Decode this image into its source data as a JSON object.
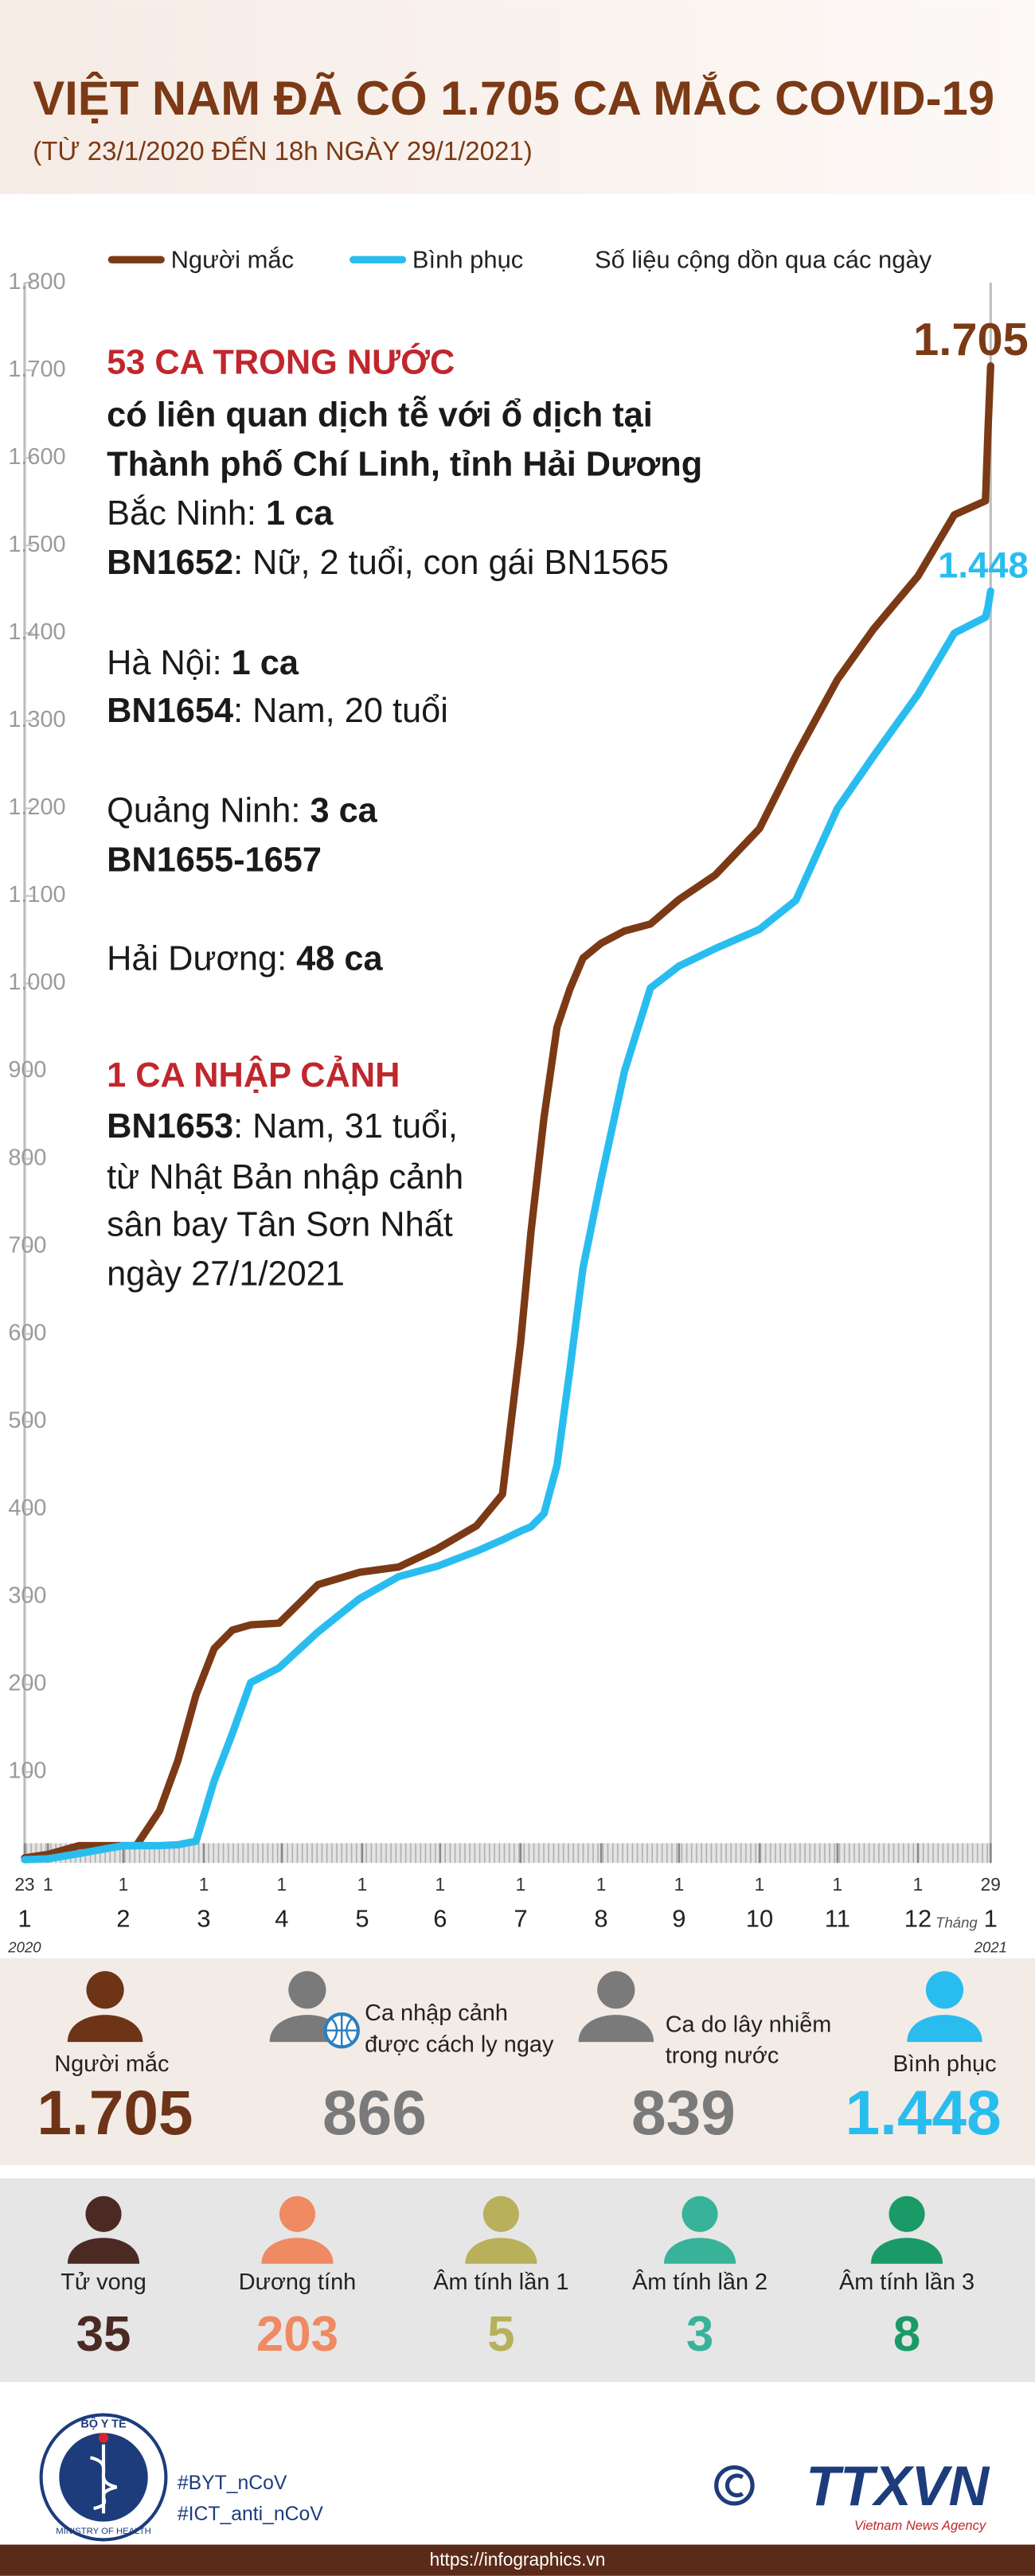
{
  "chart_data": {
    "type": "line",
    "title": "VIỆT NAM ĐÃ CÓ 1.705 CA MẮC COVID-19",
    "subtitle": "(TỪ 23/1/2020 ĐẾN 18h NGÀY 29/1/2021)",
    "note": "Số liệu cộng dồn qua các ngày",
    "x": [
      "2020-01-23",
      "2020-02-01",
      "2020-02-13",
      "2020-03-01",
      "2020-03-06",
      "2020-03-15",
      "2020-03-22",
      "2020-03-29",
      "2020-04-05",
      "2020-04-12",
      "2020-04-19",
      "2020-04-30",
      "2020-05-15",
      "2020-05-31",
      "2020-06-15",
      "2020-06-30",
      "2020-07-15",
      "2020-07-25",
      "2020-08-01",
      "2020-08-05",
      "2020-08-10",
      "2020-08-15",
      "2020-08-20",
      "2020-08-25",
      "2020-09-01",
      "2020-09-10",
      "2020-09-20",
      "2020-10-01",
      "2020-10-15",
      "2020-11-01",
      "2020-11-15",
      "2020-12-01",
      "2020-12-15",
      "2021-01-01",
      "2021-01-15",
      "2021-01-27",
      "2021-01-28",
      "2021-01-29"
    ],
    "series": [
      {
        "name": "Người mắc",
        "color": "#7b3a15",
        "values": [
          2,
          6,
          16,
          16,
          16,
          56,
          113,
          188,
          241,
          262,
          268,
          270,
          314,
          328,
          334,
          355,
          381,
          417,
          590,
          717,
          847,
          950,
          994,
          1029,
          1046,
          1060,
          1068,
          1096,
          1124,
          1177,
          1260,
          1347,
          1405,
          1465,
          1535,
          1551,
          1633,
          1705
        ],
        "value_labels": [
          null,
          null,
          null,
          null,
          null,
          null,
          null,
          null,
          null,
          null,
          null,
          null,
          null,
          null,
          null,
          null,
          null,
          null,
          null,
          null,
          null,
          null,
          null,
          null,
          null,
          null,
          null,
          null,
          null,
          null,
          null,
          null,
          null,
          null,
          null,
          null,
          null,
          "1.705"
        ]
      },
      {
        "name": "Bình phục",
        "color": "#29bdef",
        "values": [
          0,
          1,
          7,
          16,
          16,
          16,
          17,
          21,
          90,
          144,
          202,
          219,
          260,
          298,
          323,
          335,
          352,
          365,
          375,
          380,
          395,
          450,
          560,
          675,
          777,
          900,
          995,
          1020,
          1040,
          1062,
          1095,
          1200,
          1260,
          1330,
          1400,
          1418,
          1430,
          1448
        ],
        "value_labels": [
          null,
          null,
          null,
          null,
          null,
          null,
          null,
          null,
          null,
          null,
          null,
          null,
          null,
          null,
          null,
          null,
          null,
          null,
          null,
          null,
          null,
          null,
          null,
          null,
          null,
          null,
          null,
          null,
          null,
          null,
          null,
          null,
          null,
          null,
          null,
          null,
          null,
          "1.448"
        ]
      }
    ],
    "xlim": [
      "2020-01-23",
      "2021-01-29"
    ],
    "xticks": [
      {
        "value": "2020-01-23",
        "label": "23"
      },
      {
        "value": "2020-02-01",
        "label": "1"
      },
      {
        "value": "2020-03-01",
        "label": "1"
      },
      {
        "value": "2020-04-01",
        "label": "1"
      },
      {
        "value": "2020-05-01",
        "label": "1"
      },
      {
        "value": "2020-06-01",
        "label": "1"
      },
      {
        "value": "2020-07-01",
        "label": "1"
      },
      {
        "value": "2020-08-01",
        "label": "1"
      },
      {
        "value": "2020-09-01",
        "label": "1"
      },
      {
        "value": "2020-10-01",
        "label": "1"
      },
      {
        "value": "2020-11-01",
        "label": "1"
      },
      {
        "value": "2020-12-01",
        "label": "1"
      },
      {
        "value": "2021-01-01",
        "label": "1"
      },
      {
        "value": "2021-01-29",
        "label": "29"
      }
    ],
    "month_labels": [
      {
        "value": "2020-01-23",
        "label": "1"
      },
      {
        "value": "2020-03-01",
        "label": "2"
      },
      {
        "value": "2020-04-01",
        "label": "3"
      },
      {
        "value": "2020-05-01",
        "label": "4"
      },
      {
        "value": "2020-06-01",
        "label": "5"
      },
      {
        "value": "2020-07-01",
        "label": "6"
      },
      {
        "value": "2020-08-01",
        "label": "7"
      },
      {
        "value": "2020-09-01",
        "label": "8"
      },
      {
        "value": "2020-10-01",
        "label": "9"
      },
      {
        "value": "2020-11-01",
        "label": "10"
      },
      {
        "value": "2020-12-01",
        "label": "11"
      },
      {
        "value": "2021-01-01",
        "label": "12"
      },
      {
        "value": "2021-01-29",
        "label": "1"
      }
    ],
    "year_labels": [
      {
        "value": "2020-01-23",
        "label": "2020"
      },
      {
        "value": "2021-01-29",
        "label": "2021"
      }
    ],
    "month_word": "Tháng",
    "ylim": [
      0,
      1800
    ],
    "yticks": [
      100,
      200,
      300,
      400,
      500,
      600,
      700,
      800,
      900,
      {
        "value": 1000,
        "label": "1.000"
      },
      {
        "value": 1100,
        "label": "1.100"
      },
      {
        "value": 1200,
        "label": "1.200"
      },
      {
        "value": 1300,
        "label": "1.300"
      },
      {
        "value": 1400,
        "label": "1.400"
      },
      {
        "value": 1500,
        "label": "1.500"
      },
      {
        "value": 1600,
        "label": "1.600"
      },
      {
        "value": 1700,
        "label": "1.700"
      },
      {
        "value": 1800,
        "label": "1.800"
      }
    ],
    "annotations": [
      {
        "color": "#c0272d",
        "parts": [
          {
            "text": "53 CA TRONG NƯỚC",
            "bold": true
          }
        ]
      },
      {
        "parts": [
          {
            "text": "có liên quan dịch tễ với ổ dịch tại",
            "bold": true
          }
        ]
      },
      {
        "parts": [
          {
            "text": "Thành phố Chí Linh, tỉnh Hải Dương",
            "bold": true
          }
        ]
      },
      {
        "parts": [
          {
            "text": "Bắc Ninh: ",
            "bold": false
          },
          {
            "text": "1 ca",
            "bold": true
          }
        ]
      },
      {
        "parts": [
          {
            "text": "BN1652",
            "bold": true
          },
          {
            "text": ": Nữ, 2 tuổi, con gái BN1565",
            "bold": false
          }
        ]
      },
      {
        "parts": [
          {
            "text": "Hà Nội: ",
            "bold": false
          },
          {
            "text": "1 ca",
            "bold": true
          }
        ]
      },
      {
        "parts": [
          {
            "text": "BN1654",
            "bold": true
          },
          {
            "text": ": Nam, 20 tuổi",
            "bold": false
          }
        ]
      },
      {
        "parts": [
          {
            "text": "Quảng Ninh: ",
            "bold": false
          },
          {
            "text": "3 ca",
            "bold": true
          }
        ]
      },
      {
        "parts": [
          {
            "text": "BN1655-1657",
            "bold": true
          }
        ]
      },
      {
        "parts": [
          {
            "text": "Hải Dương: ",
            "bold": false
          },
          {
            "text": "48 ca",
            "bold": true
          }
        ]
      },
      {
        "color": "#c0272d",
        "parts": [
          {
            "text": "1 CA NHẬP CẢNH",
            "bold": true
          }
        ]
      },
      {
        "parts": [
          {
            "text": "BN1653",
            "bold": true
          },
          {
            "text": ": Nam, 31 tuổi,",
            "bold": false
          }
        ]
      },
      {
        "parts": [
          {
            "text": "từ Nhật Bản nhập cảnh",
            "bold": false
          }
        ]
      },
      {
        "parts": [
          {
            "text": "sân bay Tân Sơn Nhất",
            "bold": false
          }
        ]
      },
      {
        "parts": [
          {
            "text": "ngày 27/1/2021",
            "bold": false
          }
        ]
      }
    ]
  },
  "cases_summary": [
    {
      "label": [
        "Người mắc"
      ],
      "value": "1.705",
      "color": "#6e3418"
    },
    {
      "label": [
        "Ca nhập cảnh",
        "được cách ly ngay"
      ],
      "value": "866",
      "color": "#7a7a7a"
    },
    {
      "label": [
        "Ca do lây nhiễm",
        "trong nước"
      ],
      "value": "839",
      "color": "#7a7a7a"
    },
    {
      "label": [
        "Bình phục"
      ],
      "value": "1.448",
      "color": "#29bdef"
    }
  ],
  "status_summary": [
    {
      "label": "Tử vong",
      "value": "35",
      "color": "#4b2a24"
    },
    {
      "label": "Dương tính",
      "value": "203",
      "color": "#ef8a62"
    },
    {
      "label": "Âm tính lần 1",
      "value": "5",
      "color": "#b8b05a"
    },
    {
      "label": "Âm tính lần 2",
      "value": "3",
      "color": "#38b39a"
    },
    {
      "label": "Âm tính lần 3",
      "value": "8",
      "color": "#1a9a66"
    }
  ],
  "footer": {
    "logo_top": "BỘ Y TẾ",
    "logo_bottom": "MINISTRY OF HEALTH",
    "hashtags": [
      "#BYT_nCoV",
      "#ICT_anti_nCoV"
    ],
    "agency": "TTXVN",
    "agency_english": "Vietnam News Agency",
    "url": "https://infographics.vn"
  }
}
